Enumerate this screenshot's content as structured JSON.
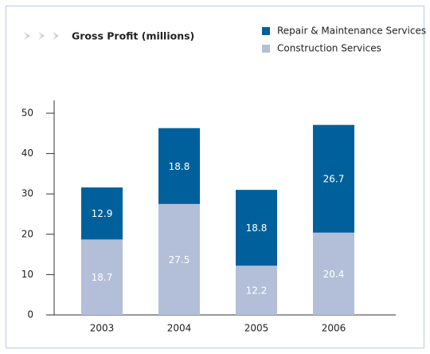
{
  "chart_data": {
    "type": "stacked_bar",
    "title": "Gross Profit (millions)",
    "categories": [
      "2003",
      "2004",
      "2005",
      "2006"
    ],
    "series": [
      {
        "name": "Construction Services",
        "color": "#b3bfd9",
        "values": [
          18.7,
          27.5,
          12.2,
          20.4
        ]
      },
      {
        "name": "Repair & Maintenance Services",
        "color": "#00609b",
        "values": [
          12.9,
          18.8,
          18.8,
          26.7
        ]
      }
    ],
    "ylim": [
      0,
      50
    ],
    "yticks": [
      0,
      10,
      20,
      30,
      40,
      50
    ],
    "grid": false
  }
}
